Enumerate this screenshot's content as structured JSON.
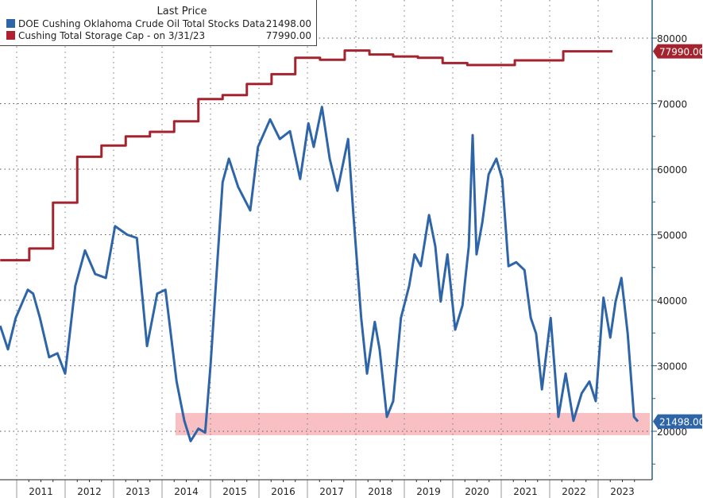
{
  "chart_data": {
    "type": "line",
    "legend_title": "Last Price",
    "legend_placement": "top-left",
    "series": [
      {
        "name": "DOE Cushing Oklahoma Crude Oil Total Stocks Data",
        "last": "21498.00",
        "color": "#2e65a8",
        "x": [
          2010.66,
          2010.82,
          2010.98,
          2011.23,
          2011.34,
          2011.48,
          2011.67,
          2011.84,
          2012.0,
          2012.21,
          2012.41,
          2012.62,
          2012.84,
          2013.03,
          2013.28,
          2013.48,
          2013.69,
          2013.9,
          2014.07,
          2014.3,
          2014.46,
          2014.59,
          2014.75,
          2014.89,
          2015.0,
          2015.25,
          2015.38,
          2015.57,
          2015.82,
          2015.98,
          2016.23,
          2016.43,
          2016.64,
          2016.85,
          2017.02,
          2017.13,
          2017.3,
          2017.46,
          2017.62,
          2017.84,
          2017.95,
          2018.11,
          2018.23,
          2018.39,
          2018.49,
          2018.64,
          2018.77,
          2018.93,
          2019.1,
          2019.21,
          2019.34,
          2019.51,
          2019.64,
          2019.75,
          2019.89,
          2020.05,
          2020.2,
          2020.33,
          2020.41,
          2020.49,
          2020.61,
          2020.74,
          2020.9,
          2021.02,
          2021.15,
          2021.31,
          2021.48,
          2021.61,
          2021.72,
          2021.84,
          2022.02,
          2022.18,
          2022.33,
          2022.49,
          2022.66,
          2022.82,
          2022.95,
          2023.11,
          2023.25,
          2023.36,
          2023.48,
          2023.61,
          2023.74,
          2023.82
        ],
        "y": [
          36100,
          32500,
          37300,
          41600,
          41000,
          37300,
          31300,
          31900,
          28800,
          42200,
          47600,
          44000,
          43400,
          51300,
          50000,
          49500,
          33000,
          41000,
          41600,
          27600,
          21600,
          18500,
          20400,
          19800,
          30000,
          58000,
          61600,
          57300,
          53700,
          63400,
          67600,
          64600,
          65800,
          58500,
          67000,
          63400,
          69500,
          61600,
          56700,
          64600,
          53000,
          37300,
          28800,
          36700,
          32500,
          22200,
          24600,
          37300,
          42200,
          47000,
          45200,
          53000,
          48200,
          39800,
          47000,
          35500,
          39200,
          48200,
          65200,
          47000,
          51900,
          59200,
          61600,
          58500,
          45200,
          45800,
          44600,
          37300,
          34900,
          26400,
          37300,
          22200,
          28800,
          21600,
          25800,
          27600,
          24600,
          40400,
          34300,
          39800,
          43400,
          34900,
          22200,
          21498
        ]
      },
      {
        "name": "Cushing Total Storage Cap -  on 3/31/23",
        "last": "77990.00",
        "color": "#a3232e",
        "step": true,
        "x": [
          2010.66,
          2011.26,
          2011.75,
          2012.25,
          2012.75,
          2013.25,
          2013.75,
          2014.25,
          2014.75,
          2015.25,
          2015.75,
          2016.26,
          2016.75,
          2017.26,
          2017.77,
          2018.28,
          2018.77,
          2019.28,
          2019.79,
          2020.3,
          2021.28,
          2022.28,
          2023.28
        ],
        "y": [
          46100,
          47900,
          54900,
          61900,
          63600,
          65000,
          65700,
          67300,
          70700,
          71300,
          73000,
          74500,
          77000,
          76700,
          78100,
          77500,
          77200,
          77000,
          76200,
          75900,
          76600,
          77990,
          77990
        ]
      }
    ],
    "highlight_band": {
      "y": [
        19400,
        22800
      ],
      "color": "#f7b9bc"
    },
    "xlim": [
      2010.656,
      2024.11
    ],
    "ylim": [
      10000,
      86000
    ],
    "y_ticks": [
      "80000",
      "70000",
      "60000",
      "50000",
      "40000",
      "30000",
      "20000"
    ],
    "x_ticks": [
      "2011",
      "2012",
      "2013",
      "2014",
      "2015",
      "2016",
      "2017",
      "2018",
      "2019",
      "2020",
      "2021",
      "2022",
      "2023"
    ],
    "grid": true,
    "axis_side": "right"
  }
}
